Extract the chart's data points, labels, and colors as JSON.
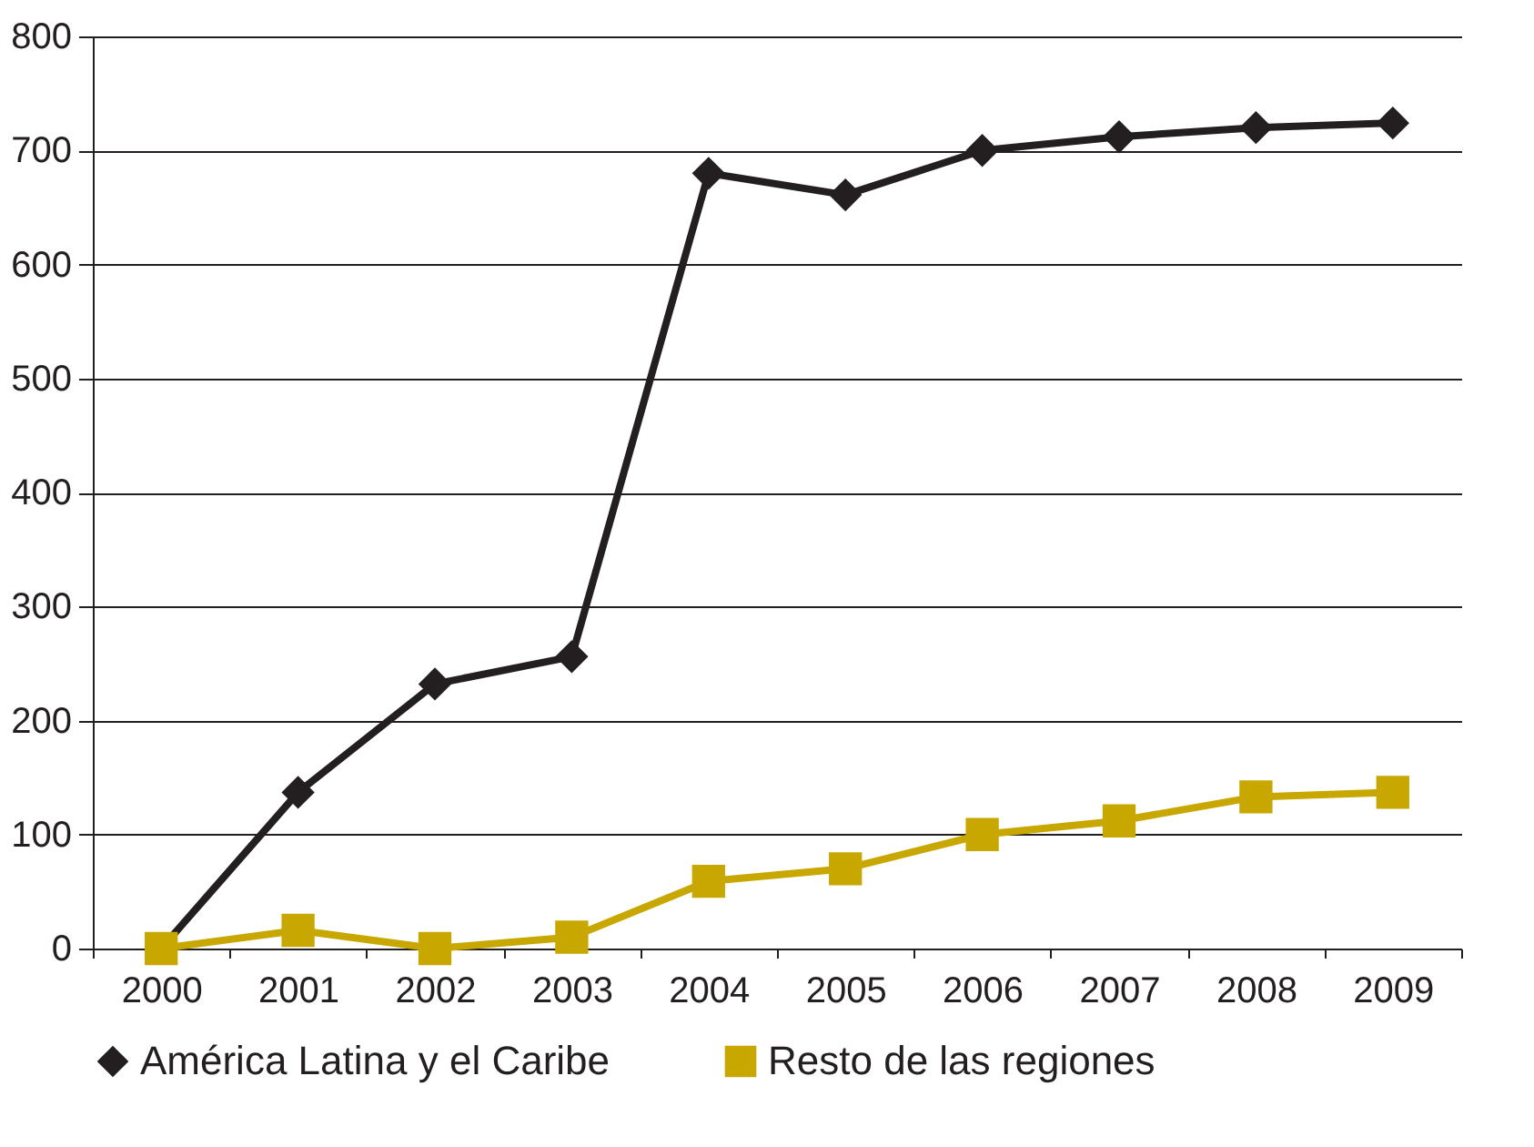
{
  "chart_data": {
    "type": "line",
    "categories": [
      "2000",
      "2001",
      "2002",
      "2003",
      "2004",
      "2005",
      "2006",
      "2007",
      "2008",
      "2009"
    ],
    "series": [
      {
        "name": "América Latina y el Caribe",
        "color": "#231f20",
        "marker": "diamond",
        "values": [
          0,
          137,
          232,
          256,
          680,
          661,
          700,
          712,
          720,
          724
        ]
      },
      {
        "name": "Resto de las regiones",
        "color": "#c8a800",
        "marker": "square",
        "values": [
          0,
          16,
          0,
          10,
          59,
          70,
          100,
          112,
          133,
          137
        ]
      }
    ],
    "ylim": [
      0,
      800
    ],
    "yticks": [
      0,
      100,
      200,
      300,
      400,
      500,
      600,
      700,
      800
    ],
    "grid": "y",
    "legend": "bottom",
    "line_style": "solid"
  }
}
